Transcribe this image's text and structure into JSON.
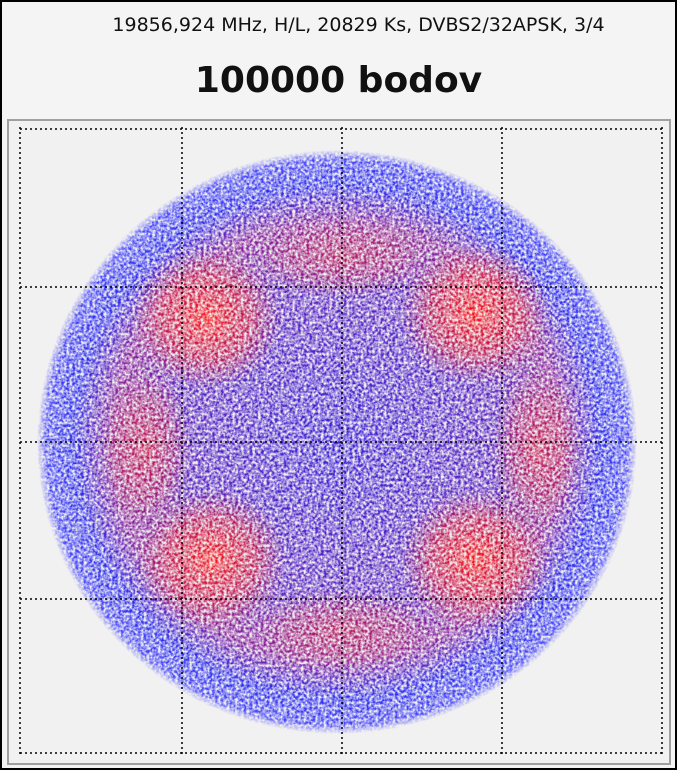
{
  "header": {
    "info": "19856,924 MHz, H/L, 20829 Ks, DVBS2/32APSK, 3/4",
    "title": "100000 bodov"
  }
}
